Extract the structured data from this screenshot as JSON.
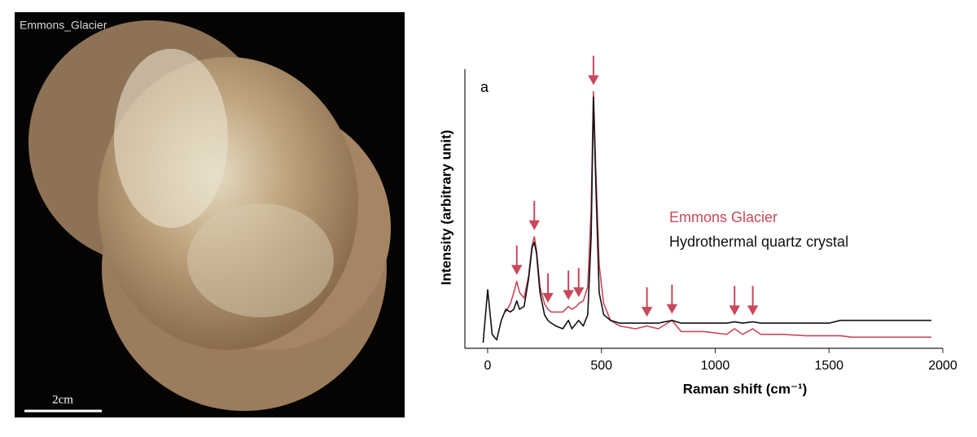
{
  "image": {
    "title": "Emmons_Glacier",
    "scale_bar": "2cm"
  },
  "chart_data": {
    "type": "line",
    "panel_label": "a",
    "x_label": "Raman shift (cm⁻¹)",
    "y_label": "Intensity (arbitrary unit)",
    "x": [
      -20,
      0,
      20,
      40,
      60,
      80,
      100,
      115,
      128,
      140,
      160,
      180,
      195,
      205,
      215,
      230,
      250,
      265,
      280,
      300,
      330,
      355,
      370,
      390,
      400,
      420,
      440,
      455,
      465,
      475,
      490,
      510,
      540,
      580,
      650,
      700,
      750,
      810,
      850,
      950,
      1050,
      1085,
      1120,
      1165,
      1200,
      1300,
      1400,
      1500,
      1550,
      1600,
      1700,
      1800,
      1900,
      1950
    ],
    "series": [
      {
        "name": "Emmons Glacier",
        "color": "#c9485b",
        "values": [
          null,
          null,
          null,
          null,
          null,
          13,
          16,
          20,
          24,
          20,
          18,
          26,
          37,
          40,
          35,
          22,
          16,
          14,
          13,
          13,
          13,
          15,
          14,
          15,
          16,
          17,
          22,
          50,
          92,
          65,
          30,
          16,
          10,
          8,
          7,
          8,
          7,
          10,
          6,
          6,
          5,
          7,
          5,
          7,
          5,
          5,
          4.5,
          4.5,
          4.5,
          4,
          4,
          4,
          4,
          4
        ]
      },
      {
        "name": "Hydrothermal quartz crystal",
        "color": "#111111",
        "values": [
          2,
          21,
          5,
          3,
          10,
          14,
          13,
          14,
          17,
          14,
          15,
          25,
          36,
          38,
          34,
          20,
          12,
          10,
          9,
          8,
          7,
          10,
          7,
          9,
          10,
          8,
          12,
          40,
          90,
          60,
          20,
          12,
          10,
          9,
          9,
          9,
          9,
          10,
          9,
          9,
          9,
          9.5,
          9,
          9.5,
          9,
          9,
          9,
          9,
          10,
          10,
          10,
          10,
          10,
          10
        ]
      }
    ],
    "arrows": {
      "x": [
        128,
        205,
        265,
        355,
        400,
        465,
        700,
        810,
        1085,
        1165
      ],
      "color": "#c9485b"
    },
    "xlim": [
      -100,
      2000
    ],
    "xticks": [
      0,
      500,
      1000,
      1500,
      2000
    ],
    "ylim": [
      0,
      100
    ],
    "legend": "right"
  }
}
